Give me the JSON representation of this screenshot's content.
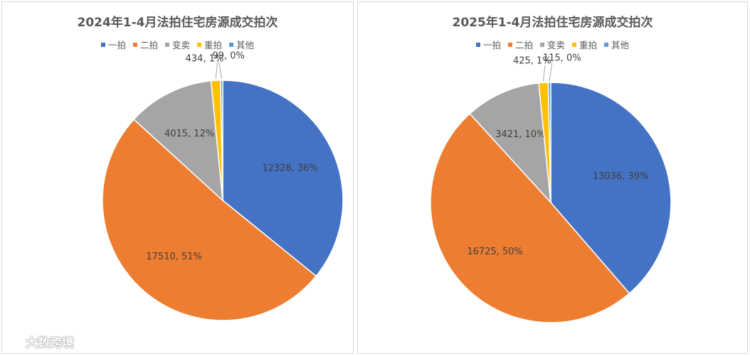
{
  "chart_data": [
    {
      "type": "pie",
      "title": "2024年1-4月法拍住宅房源成交拍次",
      "legend": {
        "position": "top"
      },
      "categories": [
        "一拍",
        "二拍",
        "变卖",
        "重拍",
        "其他"
      ],
      "values": [
        12328,
        17510,
        4015,
        434,
        99
      ],
      "percent_labels": [
        "36%",
        "51%",
        "12%",
        "1%",
        "0%"
      ],
      "colors": [
        "#4472c4",
        "#ed7d31",
        "#a5a5a5",
        "#ffc000",
        "#5b9bd5"
      ]
    },
    {
      "type": "pie",
      "title": "2025年1-4月法拍住宅房源成交拍次",
      "legend": {
        "position": "top"
      },
      "categories": [
        "一拍",
        "二拍",
        "变卖",
        "重拍",
        "其他"
      ],
      "values": [
        13036,
        16725,
        3421,
        425,
        115
      ],
      "percent_labels": [
        "39%",
        "50%",
        "10%",
        "1%",
        "0%"
      ],
      "colors": [
        "#4472c4",
        "#ed7d31",
        "#a5a5a5",
        "#ffc000",
        "#5b9bd5"
      ]
    }
  ],
  "watermark": {
    "text": "大数跨境"
  }
}
